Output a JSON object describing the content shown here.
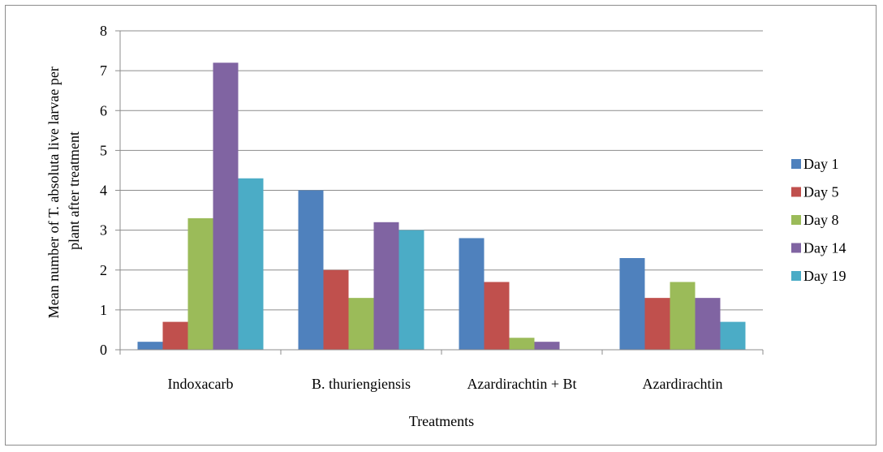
{
  "chart_data": {
    "type": "bar",
    "title": "",
    "xlabel": "Treatments",
    "ylabel_lines": [
      "Mean number of T. absoluta live larvae per",
      "plant after treatment"
    ],
    "ylim": [
      0,
      8
    ],
    "yticks": [
      "0",
      "1",
      "2",
      "3",
      "4",
      "5",
      "6",
      "7",
      "8"
    ],
    "grid": true,
    "legend_position": "right",
    "categories": [
      "Indoxacarb",
      "B. thuriengiensis",
      "Azardirachtin + Bt",
      "Azardirachtin"
    ],
    "series": [
      {
        "name": "Day 1",
        "color": "#4F81BD",
        "values": [
          0.2,
          4.0,
          2.8,
          2.3
        ]
      },
      {
        "name": "Day 5",
        "color": "#C0504D",
        "values": [
          0.7,
          2.0,
          1.7,
          1.3
        ]
      },
      {
        "name": "Day 8",
        "color": "#9BBB59",
        "values": [
          3.3,
          1.3,
          0.3,
          1.7
        ]
      },
      {
        "name": "Day 14",
        "color": "#8064A2",
        "values": [
          7.2,
          3.2,
          0.2,
          1.3
        ]
      },
      {
        "name": "Day 19",
        "color": "#4BACC6",
        "values": [
          4.3,
          3.0,
          0.0,
          0.7
        ]
      }
    ]
  }
}
